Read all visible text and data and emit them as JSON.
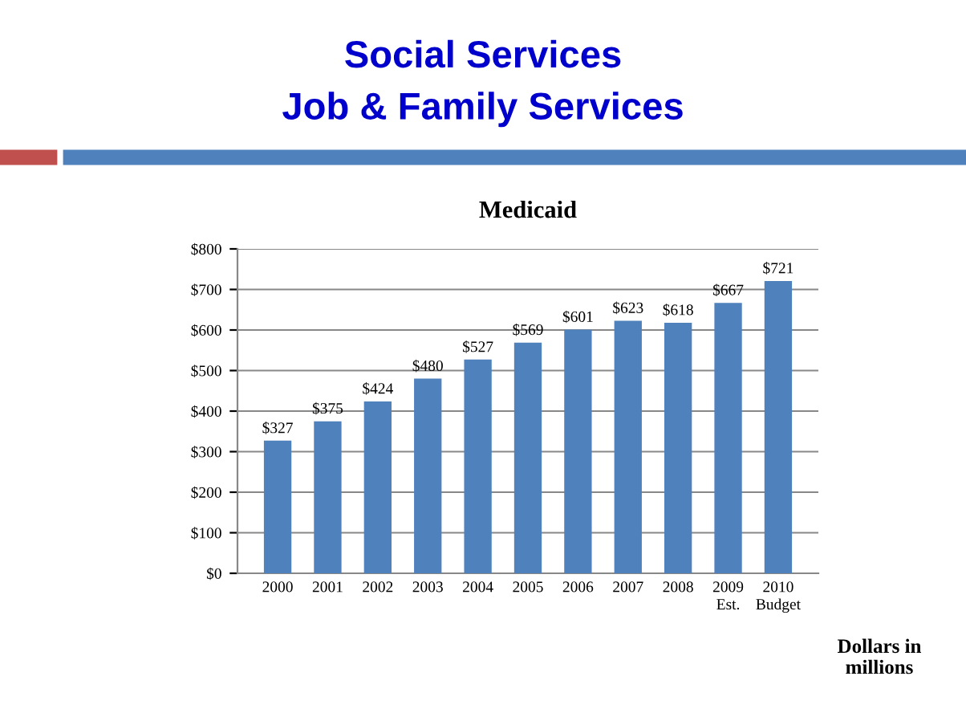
{
  "chart_data": {
    "type": "bar",
    "title": "Medicaid",
    "subtitle": "Social Services\nJob & Family Services",
    "categories": [
      "2000",
      "2001",
      "2002",
      "2003",
      "2004",
      "2005",
      "2006",
      "2007",
      "2008",
      "2009\nEst.",
      "2010\nBudget"
    ],
    "values": [
      327,
      375,
      424,
      480,
      527,
      569,
      601,
      623,
      618,
      667,
      721
    ],
    "value_labels": [
      "$327",
      "$375",
      "$424",
      "$480",
      "$527",
      "$569",
      "$601",
      "$623",
      "$618",
      "$667",
      "$721"
    ],
    "color": "#4f81bd",
    "ylim": [
      0,
      800
    ],
    "yticks": [
      {
        "value": 0,
        "label": "$0"
      },
      {
        "value": 100,
        "label": "$100"
      },
      {
        "value": 200,
        "label": "$200"
      },
      {
        "value": 300,
        "label": "$300"
      },
      {
        "value": 400,
        "label": "$400"
      },
      {
        "value": 500,
        "label": "$500"
      },
      {
        "value": 600,
        "label": "$600"
      },
      {
        "value": 700,
        "label": "$700"
      },
      {
        "value": 800,
        "label": "$800"
      }
    ],
    "grid": "y",
    "annotations": [
      "Dollars in\nmillions"
    ]
  }
}
